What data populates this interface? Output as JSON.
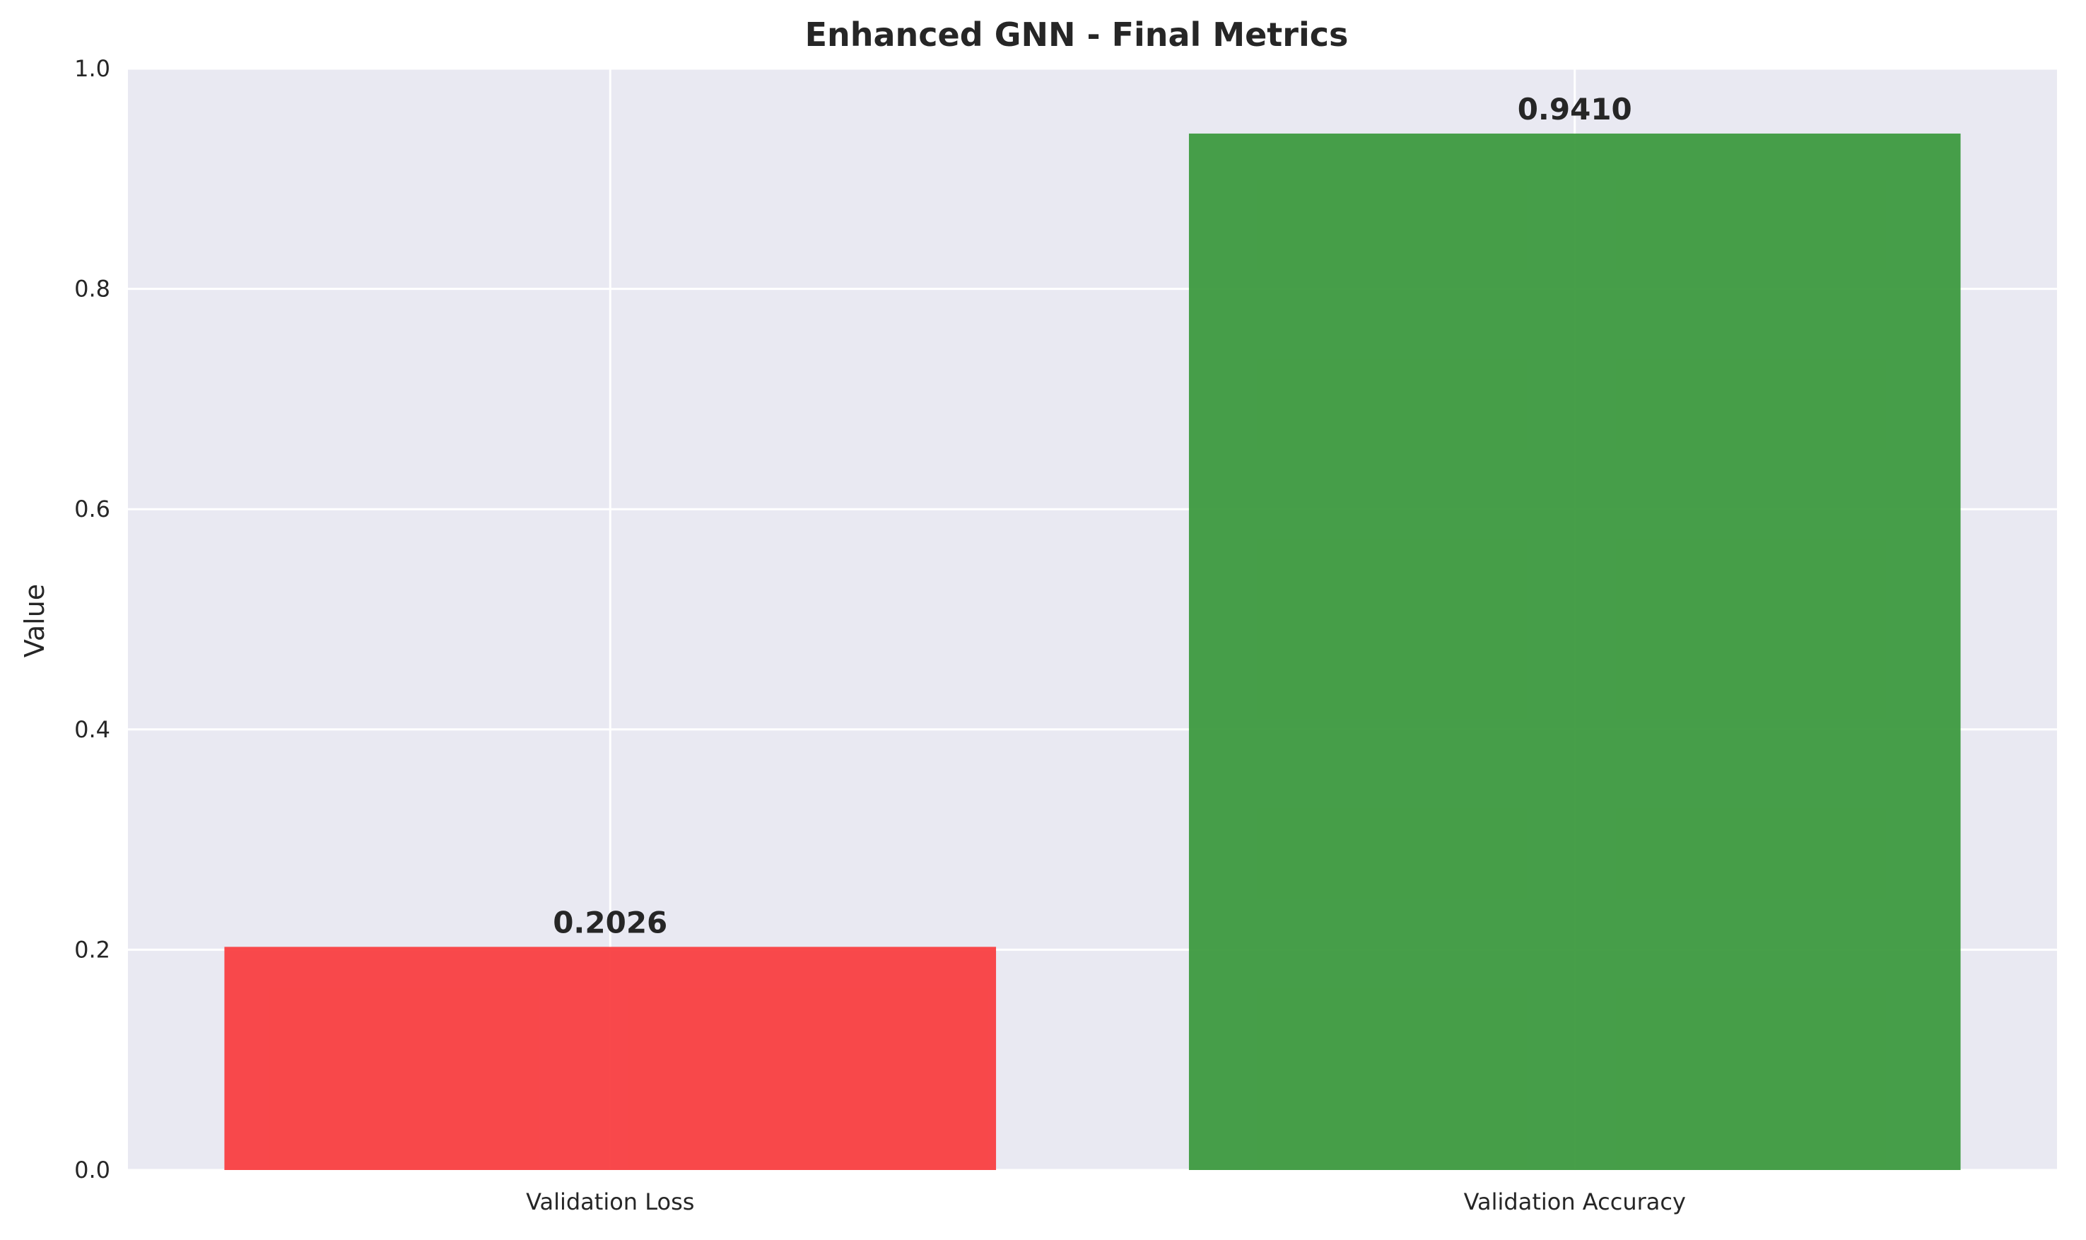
{
  "chart_data": {
    "type": "bar",
    "title": "Enhanced GNN - Final Metrics",
    "xlabel": "",
    "ylabel": "Value",
    "categories": [
      "Validation Loss",
      "Validation Accuracy"
    ],
    "values": [
      0.2026,
      0.941
    ],
    "data_labels": [
      "0.2026",
      "0.9410"
    ],
    "bar_colors": [
      "#f93f41",
      "#3d9a3f"
    ],
    "ylim": [
      0,
      1.0
    ],
    "yticks": [
      0.0,
      0.2,
      0.4,
      0.6,
      0.8,
      1.0
    ],
    "ytick_labels": [
      "0.0",
      "0.2",
      "0.4",
      "0.6",
      "0.8",
      "1.0"
    ],
    "grid": true,
    "plot_background": "#e9e9f2",
    "grid_color": "#ffffff"
  }
}
